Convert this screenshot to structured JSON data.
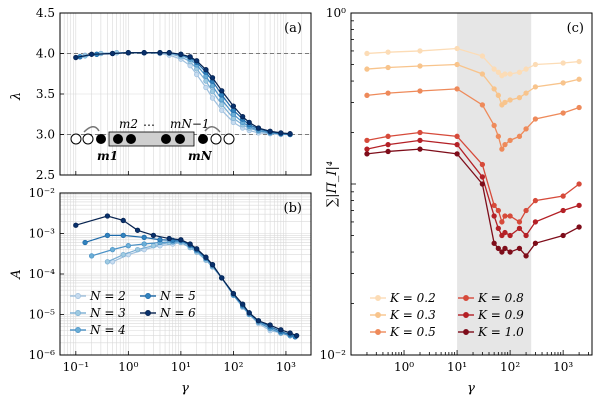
{
  "chart_data": [
    {
      "id": "a",
      "type": "line",
      "panel_label": "(a)",
      "xlabel": "",
      "ylabel": "λ",
      "xscale": "log",
      "xlim": [
        0.05,
        3000
      ],
      "ylim": [
        2.5,
        4.5
      ],
      "yticks": [
        "2.5",
        "3.0",
        "3.5",
        "4.0",
        "4.5"
      ],
      "grid": true,
      "reference_lines": [
        4.0,
        3.0
      ],
      "inset": {
        "labels": [
          "m2",
          "…",
          "mN−1",
          "m1",
          "mN"
        ]
      },
      "series": [
        {
          "name": "N=2",
          "x": [
            0.15,
            0.3,
            0.6,
            1,
            2,
            4,
            6,
            10,
            15,
            20,
            30,
            40,
            60,
            100,
            150,
            200,
            300,
            500,
            800,
            1200
          ],
          "y": [
            3.98,
            4.0,
            4.01,
            4.01,
            4.01,
            4.0,
            3.98,
            3.93,
            3.85,
            3.74,
            3.58,
            3.45,
            3.3,
            3.15,
            3.08,
            3.05,
            3.02,
            3.01,
            3.0,
            3.0
          ]
        },
        {
          "name": "N=3",
          "x": [
            0.15,
            0.3,
            0.6,
            1,
            2,
            4,
            6,
            10,
            15,
            20,
            30,
            40,
            60,
            100,
            150,
            200,
            300,
            500,
            800,
            1200
          ],
          "y": [
            3.97,
            4.0,
            4.01,
            4.01,
            4.01,
            4.01,
            4.0,
            3.96,
            3.9,
            3.81,
            3.66,
            3.53,
            3.37,
            3.2,
            3.12,
            3.08,
            3.04,
            3.02,
            3.01,
            3.0
          ]
        },
        {
          "name": "N=4",
          "x": [
            0.12,
            0.25,
            0.5,
            1,
            2,
            4,
            6,
            10,
            15,
            20,
            30,
            40,
            60,
            100,
            150,
            200,
            300,
            500,
            800,
            1200
          ],
          "y": [
            3.96,
            3.99,
            4.0,
            4.01,
            4.01,
            4.01,
            4.01,
            3.98,
            3.93,
            3.86,
            3.72,
            3.6,
            3.43,
            3.25,
            3.15,
            3.1,
            3.05,
            3.02,
            3.01,
            3.0
          ]
        },
        {
          "name": "N=5",
          "x": [
            0.12,
            0.25,
            0.5,
            1,
            2,
            4,
            6,
            10,
            15,
            20,
            30,
            40,
            60,
            100,
            150,
            200,
            300,
            500,
            800,
            1200
          ],
          "y": [
            3.96,
            3.99,
            4.0,
            4.01,
            4.01,
            4.01,
            4.01,
            3.99,
            3.95,
            3.89,
            3.77,
            3.66,
            3.49,
            3.3,
            3.19,
            3.12,
            3.07,
            3.03,
            3.01,
            3.0
          ]
        },
        {
          "name": "N=6",
          "x": [
            0.1,
            0.2,
            0.5,
            1,
            2,
            4,
            6,
            10,
            15,
            20,
            30,
            40,
            60,
            100,
            150,
            200,
            300,
            500,
            800,
            1200
          ],
          "y": [
            3.95,
            3.99,
            4.0,
            4.01,
            4.01,
            4.01,
            4.01,
            3.99,
            3.96,
            3.91,
            3.8,
            3.7,
            3.54,
            3.35,
            3.22,
            3.15,
            3.08,
            3.04,
            3.02,
            3.01
          ]
        }
      ]
    },
    {
      "id": "b",
      "type": "line",
      "panel_label": "(b)",
      "xlabel": "γ",
      "ylabel": "A",
      "xscale": "log",
      "yscale": "log",
      "xlim": [
        0.05,
        3000
      ],
      "ylim": [
        1e-06,
        0.01
      ],
      "xticks": [
        {
          "v": 0.1,
          "label": "10⁻¹"
        },
        {
          "v": 1,
          "label": "10⁰"
        },
        {
          "v": 10,
          "label": "10¹"
        },
        {
          "v": 100,
          "label": "10²"
        },
        {
          "v": 1000,
          "label": "10³"
        }
      ],
      "yticks": [
        {
          "v": 1e-06,
          "label": "10⁻⁶"
        },
        {
          "v": 1e-05,
          "label": "10⁻⁵"
        },
        {
          "v": 0.0001,
          "label": "10⁻⁴"
        },
        {
          "v": 0.001,
          "label": "10⁻³"
        },
        {
          "v": 0.01,
          "label": "10⁻²"
        }
      ],
      "grid": true,
      "legend": {
        "position": "bottom-left",
        "columns": 2
      },
      "series": [
        {
          "name": "N = 2",
          "x": [
            0.5,
            1,
            2,
            4,
            7,
            10,
            15,
            20,
            30,
            40,
            60,
            100,
            150,
            200,
            300,
            500,
            800,
            1200
          ],
          "y": [
            0.0002,
            0.0003,
            0.0004,
            0.0005,
            0.00055,
            0.0006,
            0.00045,
            0.00035,
            0.00022,
            0.00015,
            8e-05,
            3e-05,
            1.5e-05,
            1e-05,
            6e-06,
            4e-06,
            3.5e-06,
            3e-06
          ]
        },
        {
          "name": "N = 3",
          "x": [
            0.4,
            0.8,
            1.5,
            3,
            6,
            10,
            15,
            20,
            30,
            40,
            60,
            100,
            150,
            200,
            300,
            500,
            800,
            1200
          ],
          "y": [
            0.0002,
            0.0003,
            0.0004,
            0.0005,
            0.0006,
            0.0006,
            0.00045,
            0.00035,
            0.00022,
            0.00015,
            8e-05,
            3e-05,
            1.6e-05,
            1e-05,
            6.5e-06,
            4.5e-06,
            3.5e-06,
            3e-06
          ]
        },
        {
          "name": "N = 4",
          "x": [
            0.2,
            0.5,
            1,
            2,
            4,
            7,
            10,
            15,
            20,
            30,
            40,
            60,
            100,
            150,
            200,
            300,
            500,
            800,
            1200
          ],
          "y": [
            0.00028,
            0.0004,
            0.0005,
            0.00055,
            0.0006,
            0.00062,
            0.00065,
            0.0005,
            0.00038,
            0.00024,
            0.00016,
            8e-05,
            3e-05,
            1.6e-05,
            1e-05,
            6.5e-06,
            4.5e-06,
            3.5e-06,
            3e-06
          ]
        },
        {
          "name": "N = 5",
          "x": [
            0.15,
            0.4,
            0.8,
            2,
            4,
            7,
            10,
            15,
            20,
            30,
            40,
            60,
            100,
            150,
            200,
            300,
            500,
            800,
            1200,
            1500
          ],
          "y": [
            0.0006,
            0.0009,
            0.0009,
            0.0008,
            0.0007,
            0.00068,
            0.00068,
            0.00052,
            0.0004,
            0.00025,
            0.00017,
            8e-05,
            3.2e-05,
            1.7e-05,
            1.1e-05,
            7e-06,
            5e-06,
            3.8e-06,
            3.2e-06,
            2.8e-06
          ]
        },
        {
          "name": "N = 6",
          "x": [
            0.1,
            0.4,
            0.8,
            1.5,
            3,
            6,
            10,
            15,
            20,
            30,
            40,
            60,
            100,
            150,
            200,
            300,
            500,
            800,
            1200,
            1600
          ],
          "y": [
            0.0016,
            0.0027,
            0.0021,
            0.0012,
            0.0009,
            0.00075,
            0.0007,
            0.00055,
            0.00042,
            0.00026,
            0.00017,
            8e-05,
            3.3e-05,
            1.8e-05,
            1.1e-05,
            7e-06,
            5.5e-06,
            4.2e-06,
            3.5e-06,
            3e-06
          ]
        }
      ]
    },
    {
      "id": "c",
      "type": "line",
      "panel_label": "(c)",
      "xlabel": "γ",
      "ylabel": "∑|Π_I|⁴",
      "xscale": "log",
      "yscale": "log",
      "xlim": [
        0.1,
        3500
      ],
      "ylim": [
        0.01,
        1.0
      ],
      "xticks": [
        {
          "v": 1,
          "label": "10⁰"
        },
        {
          "v": 10,
          "label": "10¹"
        },
        {
          "v": 100,
          "label": "10²"
        },
        {
          "v": 1000,
          "label": "10³"
        }
      ],
      "yticks": [
        {
          "v": 0.01,
          "label": "10⁻²"
        },
        {
          "v": 1.0,
          "label": "10⁰"
        }
      ],
      "shaded_region": [
        10,
        250
      ],
      "grid": false,
      "legend": {
        "position": "bottom-center",
        "columns": 2
      },
      "series": [
        {
          "name": "K = 0.2",
          "color": "#fcdcb6",
          "x": [
            0.2,
            0.5,
            2,
            10,
            30,
            50,
            60,
            70,
            80,
            100,
            150,
            200,
            300,
            1000,
            2000
          ],
          "y": [
            0.58,
            0.59,
            0.6,
            0.62,
            0.56,
            0.47,
            0.45,
            0.43,
            0.44,
            0.44,
            0.45,
            0.47,
            0.5,
            0.51,
            0.52
          ]
        },
        {
          "name": "K = 0.3",
          "color": "#f8c48c",
          "x": [
            0.2,
            0.5,
            2,
            10,
            30,
            50,
            60,
            70,
            80,
            100,
            150,
            200,
            300,
            1000,
            2000
          ],
          "y": [
            0.47,
            0.48,
            0.49,
            0.5,
            0.44,
            0.36,
            0.33,
            0.29,
            0.3,
            0.31,
            0.32,
            0.34,
            0.37,
            0.39,
            0.41
          ]
        },
        {
          "name": "K = 0.5",
          "color": "#ee8a5a",
          "x": [
            0.2,
            0.5,
            2,
            10,
            30,
            50,
            60,
            70,
            80,
            100,
            150,
            200,
            300,
            1000,
            2000
          ],
          "y": [
            0.33,
            0.34,
            0.35,
            0.36,
            0.29,
            0.22,
            0.19,
            0.16,
            0.17,
            0.18,
            0.19,
            0.21,
            0.24,
            0.26,
            0.28
          ]
        },
        {
          "name": "K = 0.8",
          "color": "#d64a3a",
          "x": [
            0.2,
            0.5,
            2,
            10,
            30,
            50,
            60,
            70,
            80,
            100,
            150,
            200,
            300,
            1000,
            2000
          ],
          "y": [
            0.18,
            0.19,
            0.2,
            0.19,
            0.13,
            0.075,
            0.07,
            0.06,
            0.065,
            0.065,
            0.06,
            0.07,
            0.08,
            0.085,
            0.1
          ]
        },
        {
          "name": "K = 0.9",
          "color": "#b42026",
          "x": [
            0.2,
            0.5,
            2,
            10,
            30,
            50,
            60,
            70,
            80,
            100,
            150,
            200,
            300,
            1000,
            2000
          ],
          "y": [
            0.16,
            0.17,
            0.18,
            0.17,
            0.11,
            0.065,
            0.055,
            0.05,
            0.052,
            0.05,
            0.055,
            0.05,
            0.06,
            0.07,
            0.075
          ]
        },
        {
          "name": "K = 1.0",
          "color": "#7e0d1a",
          "x": [
            0.2,
            0.5,
            2,
            10,
            30,
            50,
            60,
            70,
            80,
            100,
            150,
            200,
            300,
            1000,
            2000
          ],
          "y": [
            0.15,
            0.155,
            0.16,
            0.15,
            0.1,
            0.045,
            0.042,
            0.04,
            0.042,
            0.04,
            0.042,
            0.038,
            0.045,
            0.05,
            0.056
          ]
        }
      ]
    }
  ]
}
